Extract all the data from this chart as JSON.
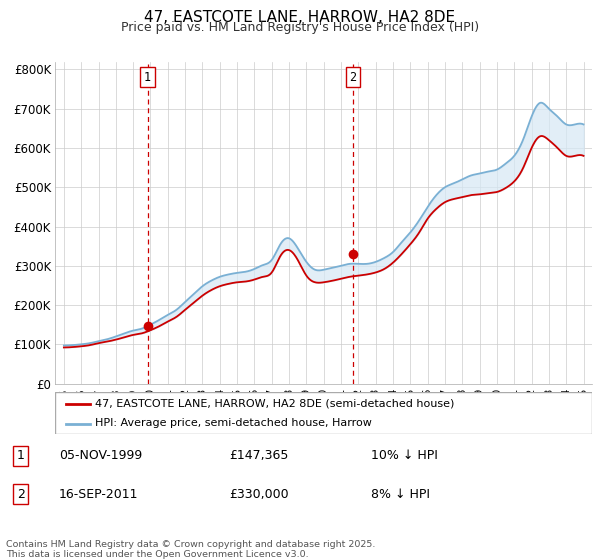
{
  "title": "47, EASTCOTE LANE, HARROW, HA2 8DE",
  "subtitle": "Price paid vs. HM Land Registry's House Price Index (HPI)",
  "ylabel_ticks": [
    "£0",
    "£100K",
    "£200K",
    "£300K",
    "£400K",
    "£500K",
    "£600K",
    "£700K",
    "£800K"
  ],
  "ytick_values": [
    0,
    100000,
    200000,
    300000,
    400000,
    500000,
    600000,
    700000,
    800000
  ],
  "ylim": [
    0,
    820000
  ],
  "xlim_start": 1994.5,
  "xlim_end": 2025.5,
  "marker1": {
    "year": 1999.83,
    "value": 147365,
    "label": "1"
  },
  "marker2": {
    "year": 2011.7,
    "value": 330000,
    "label": "2"
  },
  "legend_entry1": "47, EASTCOTE LANE, HARROW, HA2 8DE (semi-detached house)",
  "legend_entry2": "HPI: Average price, semi-detached house, Harrow",
  "table_row1": [
    "1",
    "05-NOV-1999",
    "£147,365",
    "10% ↓ HPI"
  ],
  "table_row2": [
    "2",
    "16-SEP-2011",
    "£330,000",
    "8% ↓ HPI"
  ],
  "footer": "Contains HM Land Registry data © Crown copyright and database right 2025.\nThis data is licensed under the Open Government Licence v3.0.",
  "color_red": "#cc0000",
  "color_blue": "#7ab0d4",
  "color_fill": "#d6e8f5",
  "color_dashed": "#cc0000",
  "background_color": "#ffffff",
  "grid_color": "#cccccc",
  "hpi_years": [
    1995.0,
    1995.5,
    1996.0,
    1996.5,
    1997.0,
    1997.5,
    1998.0,
    1998.5,
    1999.0,
    1999.5,
    2000.0,
    2000.5,
    2001.0,
    2001.5,
    2002.0,
    2002.5,
    2003.0,
    2003.5,
    2004.0,
    2004.5,
    2005.0,
    2005.5,
    2006.0,
    2006.5,
    2007.0,
    2007.5,
    2008.0,
    2008.5,
    2009.0,
    2009.5,
    2010.0,
    2010.5,
    2011.0,
    2011.5,
    2012.0,
    2012.5,
    2013.0,
    2013.5,
    2014.0,
    2014.5,
    2015.0,
    2015.5,
    2016.0,
    2016.5,
    2017.0,
    2017.5,
    2018.0,
    2018.5,
    2019.0,
    2019.5,
    2020.0,
    2020.5,
    2021.0,
    2021.5,
    2022.0,
    2022.5,
    2023.0,
    2023.5,
    2024.0,
    2024.5,
    2025.0
  ],
  "hpi_values": [
    97000,
    98000,
    100000,
    103000,
    108000,
    113000,
    120000,
    128000,
    135000,
    140000,
    150000,
    162000,
    175000,
    188000,
    208000,
    228000,
    248000,
    262000,
    272000,
    278000,
    282000,
    285000,
    292000,
    302000,
    315000,
    355000,
    370000,
    345000,
    310000,
    290000,
    290000,
    295000,
    300000,
    305000,
    305000,
    305000,
    310000,
    320000,
    335000,
    360000,
    385000,
    415000,
    450000,
    480000,
    500000,
    510000,
    520000,
    530000,
    535000,
    540000,
    545000,
    560000,
    580000,
    620000,
    680000,
    715000,
    700000,
    680000,
    660000,
    660000,
    660000
  ],
  "price_years": [
    1995.0,
    1995.5,
    1996.0,
    1996.5,
    1997.0,
    1997.5,
    1998.0,
    1998.5,
    1999.0,
    1999.5,
    2000.0,
    2000.5,
    2001.0,
    2001.5,
    2002.0,
    2002.5,
    2003.0,
    2003.5,
    2004.0,
    2004.5,
    2005.0,
    2005.5,
    2006.0,
    2006.5,
    2007.0,
    2007.5,
    2008.0,
    2008.5,
    2009.0,
    2009.5,
    2010.0,
    2010.5,
    2011.0,
    2011.5,
    2012.0,
    2012.5,
    2013.0,
    2013.5,
    2014.0,
    2014.5,
    2015.0,
    2015.5,
    2016.0,
    2016.5,
    2017.0,
    2017.5,
    2018.0,
    2018.5,
    2019.0,
    2019.5,
    2020.0,
    2020.5,
    2021.0,
    2021.5,
    2022.0,
    2022.5,
    2023.0,
    2023.5,
    2024.0,
    2024.5,
    2025.0
  ],
  "price_values": [
    92000,
    93000,
    95000,
    98000,
    103000,
    107000,
    112000,
    118000,
    124000,
    128000,
    136000,
    146000,
    158000,
    170000,
    188000,
    206000,
    224000,
    238000,
    248000,
    254000,
    258000,
    260000,
    265000,
    272000,
    283000,
    325000,
    340000,
    315000,
    275000,
    258000,
    258000,
    262000,
    267000,
    272000,
    275000,
    278000,
    283000,
    292000,
    308000,
    330000,
    355000,
    384000,
    420000,
    445000,
    462000,
    470000,
    475000,
    480000,
    482000,
    485000,
    488000,
    498000,
    515000,
    548000,
    600000,
    630000,
    620000,
    600000,
    580000,
    580000,
    580000
  ]
}
